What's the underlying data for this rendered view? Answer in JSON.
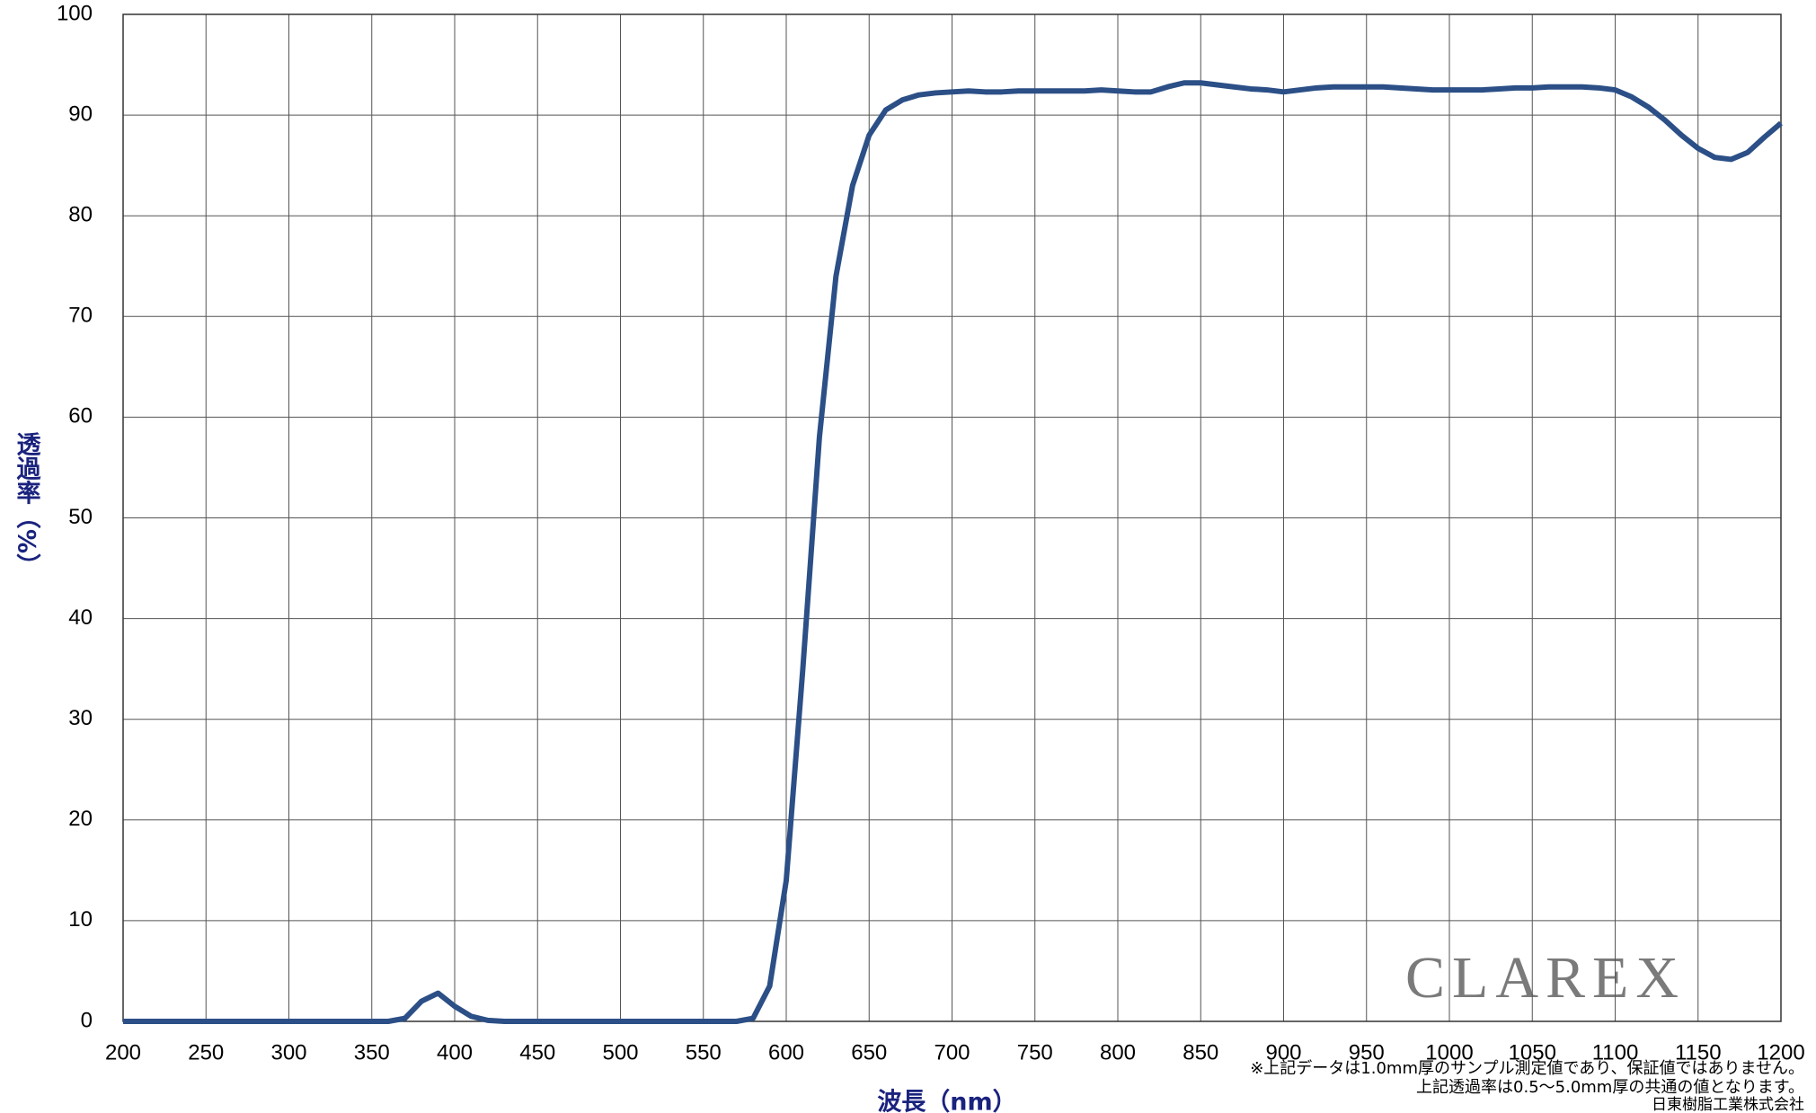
{
  "chart_data": {
    "type": "line",
    "x_label": "波長（nm）",
    "y_label": "透過率（%）",
    "notes": [
      "※上記データは1.0mm厚のサンプル測定値であり、保証値ではありません。",
      "上記透過率は0.5～5.0mm厚の共通の値となります。",
      "日東樹脂工業株式会社"
    ],
    "watermark": "CLAREX",
    "x": [
      200,
      210,
      220,
      230,
      240,
      250,
      260,
      270,
      280,
      290,
      300,
      310,
      320,
      330,
      340,
      350,
      360,
      370,
      380,
      390,
      400,
      410,
      420,
      430,
      440,
      450,
      460,
      470,
      480,
      490,
      500,
      510,
      520,
      530,
      540,
      550,
      560,
      570,
      580,
      590,
      600,
      610,
      620,
      630,
      640,
      650,
      660,
      670,
      680,
      690,
      700,
      710,
      720,
      730,
      740,
      750,
      760,
      770,
      780,
      790,
      800,
      810,
      820,
      830,
      840,
      850,
      860,
      870,
      880,
      890,
      900,
      910,
      920,
      930,
      940,
      950,
      960,
      970,
      980,
      990,
      1000,
      1010,
      1020,
      1030,
      1040,
      1050,
      1060,
      1070,
      1080,
      1090,
      1100,
      1110,
      1120,
      1130,
      1140,
      1150,
      1160,
      1170,
      1180,
      1190,
      1200
    ],
    "series": [
      {
        "color": "#2b4f86",
        "values": [
          0,
          0,
          0,
          0,
          0,
          0,
          0,
          0,
          0,
          0,
          0,
          0,
          0,
          0,
          0,
          0,
          0,
          0.3,
          2,
          2.8,
          1.5,
          0.5,
          0.1,
          0,
          0,
          0,
          0,
          0,
          0,
          0,
          0,
          0,
          0,
          0,
          0,
          0,
          0,
          0,
          0.3,
          3.5,
          14,
          35,
          58,
          74,
          83,
          88,
          90.5,
          91.5,
          92,
          92.2,
          92.3,
          92.4,
          92.3,
          92.3,
          92.4,
          92.4,
          92.4,
          92.4,
          92.4,
          92.5,
          92.4,
          92.3,
          92.3,
          92.8,
          93.2,
          93.2,
          93,
          92.8,
          92.6,
          92.5,
          92.3,
          92.5,
          92.7,
          92.8,
          92.8,
          92.8,
          92.8,
          92.7,
          92.6,
          92.5,
          92.5,
          92.5,
          92.5,
          92.6,
          92.7,
          92.7,
          92.8,
          92.8,
          92.8,
          92.7,
          92.5,
          91.8,
          90.8,
          89.5,
          88,
          86.7,
          85.8,
          85.6,
          86.3,
          87.8,
          89.2
        ]
      }
    ],
    "xlim": [
      200,
      1200
    ],
    "xticks": [
      200,
      250,
      300,
      350,
      400,
      450,
      500,
      550,
      600,
      650,
      700,
      750,
      800,
      850,
      900,
      950,
      1000,
      1050,
      1100,
      1150,
      1200
    ],
    "ylim": [
      0,
      100
    ],
    "yticks": [
      0,
      10,
      20,
      30,
      40,
      50,
      60,
      70,
      80,
      90,
      100
    ],
    "grid": true
  }
}
